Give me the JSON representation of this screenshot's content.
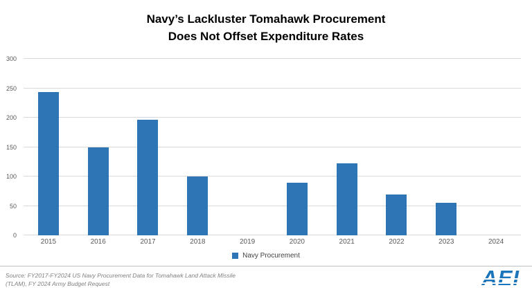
{
  "title": {
    "line1": "Navy’s Lackluster Tomahawk Procurement",
    "line2": "Does Not Offset Expenditure Rates"
  },
  "chart_data": {
    "type": "bar",
    "title": "Navy’s Lackluster Tomahawk Procurement Does Not Offset Expenditure Rates",
    "categories": [
      "2015",
      "2016",
      "2017",
      "2018",
      "2019",
      "2020",
      "2021",
      "2022",
      "2023",
      "2024"
    ],
    "series": [
      {
        "name": "Navy Procurement",
        "values": [
          243,
          149,
          196,
          100,
          0,
          90,
          122,
          70,
          55,
          0
        ]
      }
    ],
    "xlabel": "",
    "ylabel": "",
    "ylim": [
      0,
      300
    ],
    "yticks": [
      0,
      50,
      100,
      150,
      200,
      250,
      300
    ],
    "grid": true,
    "legend_position": "bottom",
    "bar_color": "#2e75b6",
    "gridline_color": "#d9d9d9"
  },
  "legend": {
    "label": "Navy Procurement"
  },
  "footer": {
    "source_line1": "Source: FY2017-FY2024 US Navy Procurement Data for Tomahawk Land Attack Missile",
    "source_line2": "(TLAM), FY 2024 Army Budget Request",
    "logo_text": "AEI"
  }
}
